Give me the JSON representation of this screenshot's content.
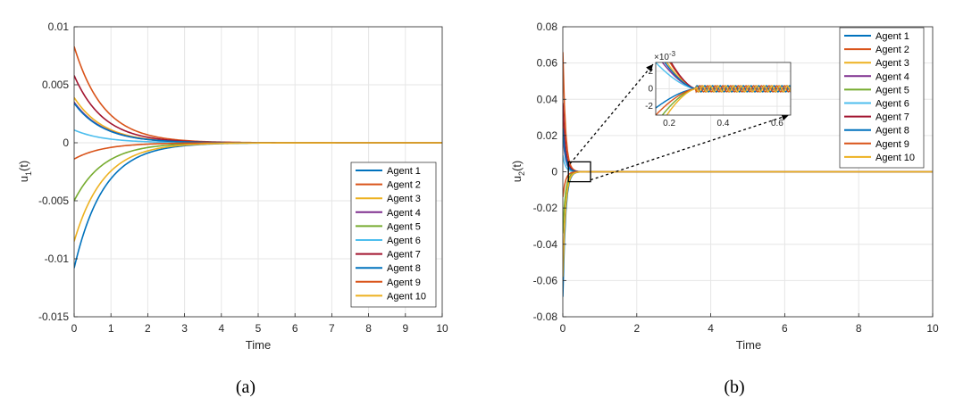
{
  "colors": [
    "#0072BD",
    "#D95319",
    "#EDB120",
    "#7E2F8E",
    "#77AC30",
    "#4DBEEE",
    "#A2142F",
    "#0072BD",
    "#D95319",
    "#EDB120"
  ],
  "chart_data": [
    {
      "type": "line",
      "caption": "(a)",
      "xlabel": "Time",
      "ylabel": "u",
      "ylabel_sub": "1",
      "ylabel_suffix": "(t)",
      "xlim": [
        0,
        10
      ],
      "ylim": [
        -0.015,
        0.01
      ],
      "xticks": [
        "0",
        "1",
        "2",
        "3",
        "4",
        "5",
        "6",
        "7",
        "8",
        "9",
        "10"
      ],
      "yticks": [
        "0.01",
        "0.005",
        "0",
        "-0.005",
        "-0.01",
        "-0.015"
      ],
      "ytick_values": [
        0.01,
        0.005,
        0,
        -0.005,
        -0.01,
        -0.015
      ],
      "grid": true,
      "legend_position": "bottom-right",
      "decay_rate": 1.25,
      "series": [
        {
          "name": "Agent 1",
          "y0": -0.0108
        },
        {
          "name": "Agent 2",
          "y0": 0.0083
        },
        {
          "name": "Agent 3",
          "y0": 0.0039
        },
        {
          "name": "Agent 4",
          "y0": 0.0035
        },
        {
          "name": "Agent 5",
          "y0": -0.005
        },
        {
          "name": "Agent 6",
          "y0": 0.0011
        },
        {
          "name": "Agent 7",
          "y0": 0.0058
        },
        {
          "name": "Agent 8",
          "y0": 0.0034
        },
        {
          "name": "Agent 9",
          "y0": -0.0014
        },
        {
          "name": "Agent 10",
          "y0": -0.0085
        }
      ]
    },
    {
      "type": "line",
      "caption": "(b)",
      "xlabel": "Time",
      "ylabel": "u",
      "ylabel_sub": "2",
      "ylabel_suffix": "(t)",
      "xlim": [
        0,
        10
      ],
      "ylim": [
        -0.08,
        0.08
      ],
      "xticks": [
        "0",
        "2",
        "4",
        "6",
        "8",
        "10"
      ],
      "yticks": [
        "0.08",
        "0.06",
        "0.04",
        "0.02",
        "0",
        "-0.02",
        "-0.04",
        "-0.06",
        "-0.08"
      ],
      "ytick_values": [
        0.08,
        0.06,
        0.04,
        0.02,
        0,
        -0.02,
        -0.04,
        -0.06,
        -0.08
      ],
      "grid": true,
      "legend_position": "top-right",
      "decay_rate": 14,
      "series": [
        {
          "name": "Agent 1",
          "y0": -0.069
        },
        {
          "name": "Agent 2",
          "y0": 0.066
        },
        {
          "name": "Agent 3",
          "y0": 0.028
        },
        {
          "name": "Agent 4",
          "y0": 0.021
        },
        {
          "name": "Agent 5",
          "y0": -0.034
        },
        {
          "name": "Agent 6",
          "y0": 0.009
        },
        {
          "name": "Agent 7",
          "y0": 0.038
        },
        {
          "name": "Agent 8",
          "y0": 0.024
        },
        {
          "name": "Agent 9",
          "y0": -0.014
        },
        {
          "name": "Agent 10",
          "y0": -0.058
        }
      ],
      "inset": {
        "exponent_label": "×10",
        "exponent_power": "-3",
        "xlim": [
          0.15,
          0.65
        ],
        "ylim": [
          -3,
          3
        ],
        "xticks": [
          "0.2",
          "0.4",
          "0.6"
        ],
        "xtick_values": [
          0.2,
          0.4,
          0.6
        ],
        "yticks": [
          "2",
          "0",
          "-2"
        ],
        "ytick_values": [
          2,
          0,
          -2
        ],
        "zoom_box_xlim": [
          0.15,
          0.75
        ],
        "zoom_box_ylim": [
          -0.004,
          0.004
        ]
      }
    }
  ]
}
